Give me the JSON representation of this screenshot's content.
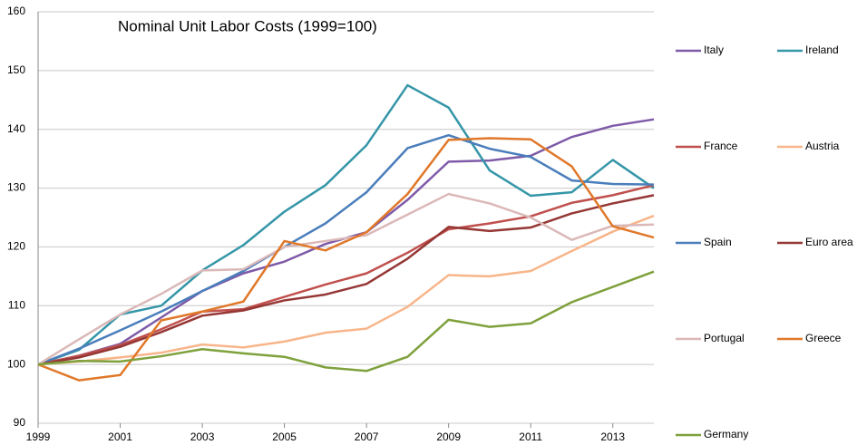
{
  "chart_data": {
    "type": "line",
    "title": "Nominal Unit Labor Costs (1999=100)",
    "x": [
      1999,
      2000,
      2001,
      2002,
      2003,
      2004,
      2005,
      2006,
      2007,
      2008,
      2009,
      2010,
      2011,
      2012,
      2013,
      2014
    ],
    "xlim": [
      1999,
      2014
    ],
    "xticks": [
      1999,
      2001,
      2003,
      2005,
      2007,
      2009,
      2011,
      2013
    ],
    "ylim": [
      90,
      160
    ],
    "yticks": [
      90,
      100,
      110,
      120,
      130,
      140,
      150,
      160
    ],
    "grid": true,
    "legend": "right",
    "series": [
      {
        "name": "Italy",
        "color": "#7e5aa8",
        "values": [
          100,
          101.5,
          103.5,
          108,
          112.5,
          115.5,
          117.5,
          120.5,
          122.5,
          128,
          134.5,
          134.7,
          135.5,
          138.7,
          140.6,
          141.7
        ]
      },
      {
        "name": "Ireland",
        "color": "#3596a8",
        "values": [
          100,
          102.5,
          108.5,
          110,
          116,
          120.3,
          126,
          130.5,
          137.3,
          147.5,
          143.7,
          133,
          128.7,
          129.3,
          134.8,
          130
        ]
      },
      {
        "name": "France",
        "color": "#c0504d",
        "values": [
          100,
          101.5,
          103.3,
          106,
          109,
          109.4,
          111.5,
          113.6,
          115.5,
          119,
          123,
          124,
          125.2,
          127.5,
          128.8,
          130.5
        ]
      },
      {
        "name": "Austria",
        "color": "#f8b58a",
        "values": [
          100,
          100.5,
          101.2,
          102,
          103.4,
          102.9,
          103.9,
          105.4,
          106.1,
          109.8,
          115.2,
          115,
          115.9,
          119.3,
          122.6,
          125.3
        ]
      },
      {
        "name": "Spain",
        "color": "#4a7ebb",
        "values": [
          100,
          102.7,
          105.8,
          109,
          112.5,
          115.9,
          120,
          124,
          129.3,
          136.8,
          139,
          136.7,
          135.3,
          131.3,
          130.7,
          130.6
        ]
      },
      {
        "name": "Euro area",
        "color": "#953735",
        "values": [
          100,
          101.2,
          103,
          105.5,
          108.3,
          109.2,
          110.9,
          111.9,
          113.7,
          118,
          123.4,
          122.7,
          123.3,
          125.7,
          127.4,
          128.8
        ]
      },
      {
        "name": "Portugal",
        "color": "#dbb8b8",
        "values": [
          100,
          104.3,
          108.5,
          112,
          116,
          116.2,
          120,
          121,
          122,
          125.5,
          129,
          127.4,
          125,
          121.2,
          123.6,
          123.8
        ]
      },
      {
        "name": "Greece",
        "color": "#e0782a",
        "values": [
          100,
          97.3,
          98.2,
          107.5,
          109,
          110.7,
          121,
          119.4,
          122.5,
          129,
          138.2,
          138.5,
          138.3,
          133.7,
          123.5,
          121.6
        ]
      },
      {
        "name": "Germany",
        "color": "#7ea13c",
        "values": [
          100,
          100.6,
          100.5,
          101.4,
          102.6,
          101.9,
          101.3,
          99.5,
          98.9,
          101.3,
          107.6,
          106.4,
          107,
          110.6,
          113.2,
          115.8
        ]
      }
    ]
  }
}
